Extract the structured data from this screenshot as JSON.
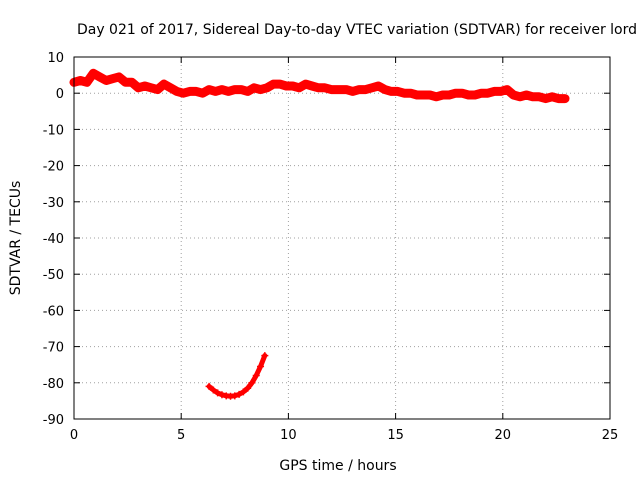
{
  "chart_data": {
    "type": "scatter",
    "title": "Day 021 of 2017, Sidereal Day-to-day VTEC variation (SDTVAR) for receiver lord",
    "xlabel": "GPS time / hours",
    "ylabel": "SDTVAR / TECUs",
    "xlim": [
      0,
      25
    ],
    "ylim": [
      -90,
      10
    ],
    "xticks": [
      0,
      5,
      10,
      15,
      20,
      25
    ],
    "yticks": [
      10,
      0,
      -10,
      -20,
      -30,
      -40,
      -50,
      -60,
      -70,
      -80,
      -90
    ],
    "grid": true,
    "marker_color": "#ff0000",
    "series": [
      {
        "name": "main band",
        "points": [
          [
            0.0,
            3.0
          ],
          [
            0.3,
            3.5
          ],
          [
            0.6,
            3.0
          ],
          [
            0.9,
            5.5
          ],
          [
            1.2,
            4.5
          ],
          [
            1.5,
            3.5
          ],
          [
            1.8,
            4.0
          ],
          [
            2.1,
            4.5
          ],
          [
            2.4,
            3.0
          ],
          [
            2.7,
            3.0
          ],
          [
            3.0,
            1.5
          ],
          [
            3.3,
            2.0
          ],
          [
            3.6,
            1.5
          ],
          [
            3.9,
            1.0
          ],
          [
            4.2,
            2.5
          ],
          [
            4.5,
            1.5
          ],
          [
            4.8,
            0.5
          ],
          [
            5.1,
            0.0
          ],
          [
            5.4,
            0.5
          ],
          [
            5.7,
            0.5
          ],
          [
            6.0,
            0.0
          ],
          [
            6.3,
            1.0
          ],
          [
            6.6,
            0.5
          ],
          [
            6.9,
            1.0
          ],
          [
            7.2,
            0.5
          ],
          [
            7.5,
            1.0
          ],
          [
            7.8,
            1.0
          ],
          [
            8.1,
            0.5
          ],
          [
            8.4,
            1.5
          ],
          [
            8.7,
            1.0
          ],
          [
            9.0,
            1.5
          ],
          [
            9.3,
            2.5
          ],
          [
            9.6,
            2.5
          ],
          [
            9.9,
            2.0
          ],
          [
            10.2,
            2.0
          ],
          [
            10.5,
            1.5
          ],
          [
            10.8,
            2.5
          ],
          [
            11.1,
            2.0
          ],
          [
            11.4,
            1.5
          ],
          [
            11.7,
            1.5
          ],
          [
            12.0,
            1.0
          ],
          [
            12.3,
            1.0
          ],
          [
            12.7,
            1.0
          ],
          [
            13.0,
            0.5
          ],
          [
            13.3,
            1.0
          ],
          [
            13.6,
            1.0
          ],
          [
            13.9,
            1.5
          ],
          [
            14.2,
            2.0
          ],
          [
            14.5,
            1.0
          ],
          [
            14.8,
            0.5
          ],
          [
            15.1,
            0.5
          ],
          [
            15.4,
            0.0
          ],
          [
            15.7,
            0.0
          ],
          [
            16.0,
            -0.5
          ],
          [
            16.3,
            -0.5
          ],
          [
            16.6,
            -0.5
          ],
          [
            16.9,
            -1.0
          ],
          [
            17.2,
            -0.5
          ],
          [
            17.5,
            -0.5
          ],
          [
            17.8,
            0.0
          ],
          [
            18.1,
            0.0
          ],
          [
            18.4,
            -0.5
          ],
          [
            18.7,
            -0.5
          ],
          [
            19.0,
            0.0
          ],
          [
            19.3,
            0.0
          ],
          [
            19.6,
            0.5
          ],
          [
            19.9,
            0.5
          ],
          [
            20.2,
            1.0
          ],
          [
            20.5,
            -0.5
          ],
          [
            20.8,
            -1.0
          ],
          [
            21.1,
            -0.5
          ],
          [
            21.4,
            -1.0
          ],
          [
            21.7,
            -1.0
          ],
          [
            22.0,
            -1.5
          ],
          [
            22.3,
            -1.0
          ],
          [
            22.6,
            -1.5
          ],
          [
            22.9,
            -1.5
          ]
        ]
      },
      {
        "name": "arc",
        "points": [
          [
            6.3,
            -81.0
          ],
          [
            6.5,
            -82.0
          ],
          [
            6.7,
            -82.8
          ],
          [
            6.9,
            -83.3
          ],
          [
            7.1,
            -83.6
          ],
          [
            7.3,
            -83.7
          ],
          [
            7.5,
            -83.6
          ],
          [
            7.7,
            -83.2
          ],
          [
            7.9,
            -82.5
          ],
          [
            8.1,
            -81.5
          ],
          [
            8.3,
            -80.0
          ],
          [
            8.5,
            -78.0
          ],
          [
            8.7,
            -75.5
          ],
          [
            8.9,
            -72.5
          ]
        ]
      }
    ]
  }
}
